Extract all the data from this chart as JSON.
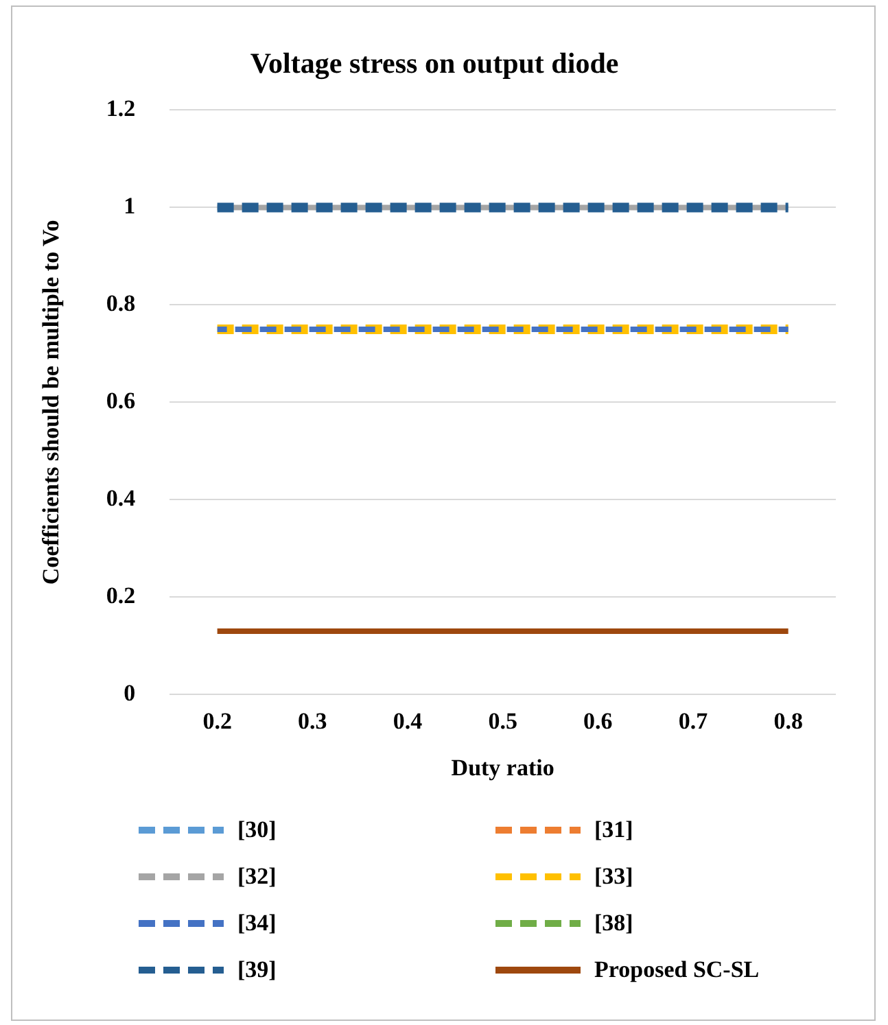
{
  "chart_data": {
    "type": "line",
    "title": "Voltage stress on output diode",
    "xlabel": "Duty ratio",
    "ylabel": "Coefficients should be multiple to Vo",
    "categories": [
      "0.2",
      "0.3",
      "0.4",
      "0.5",
      "0.6",
      "0.7",
      "0.8"
    ],
    "ylim": [
      0,
      1.2
    ],
    "yticks": [
      0,
      0.2,
      0.4,
      0.6,
      0.8,
      1,
      1.2
    ],
    "grid": "y",
    "legend": "bottom",
    "marker": "none",
    "series": [
      {
        "name": "[30]",
        "color": "#5b9bd5",
        "line_style": "dashed",
        "values": [
          null,
          null,
          null,
          null,
          null,
          null,
          null
        ]
      },
      {
        "name": "[31]",
        "color": "#ed7d31",
        "line_style": "dashed",
        "values": [
          null,
          null,
          null,
          null,
          null,
          null,
          null
        ]
      },
      {
        "name": "[32]",
        "color": "#a5a5a5",
        "line_style": "dashed",
        "values": [
          1,
          1,
          1,
          1,
          1,
          1,
          1
        ]
      },
      {
        "name": "[33]",
        "color": "#ffc000",
        "line_style": "dashed",
        "values": [
          0.75,
          0.75,
          0.75,
          0.75,
          0.75,
          0.75,
          0.75
        ]
      },
      {
        "name": "[34]",
        "color": "#4472c4",
        "line_style": "dashed",
        "values": [
          0.75,
          0.75,
          0.75,
          0.75,
          0.75,
          0.75,
          0.75
        ]
      },
      {
        "name": "[38]",
        "color": "#70ad47",
        "line_style": "dashed",
        "values": [
          null,
          null,
          null,
          null,
          null,
          null,
          null
        ]
      },
      {
        "name": "[39]",
        "color": "#255e91",
        "line_style": "dashed",
        "values": [
          1,
          1,
          1,
          1,
          1,
          1,
          1
        ]
      },
      {
        "name": "Proposed SC-SL",
        "color": "#9e480e",
        "line_style": "solid",
        "values": [
          0.13,
          0.13,
          0.13,
          0.13,
          0.13,
          0.13,
          0.13
        ]
      }
    ]
  }
}
